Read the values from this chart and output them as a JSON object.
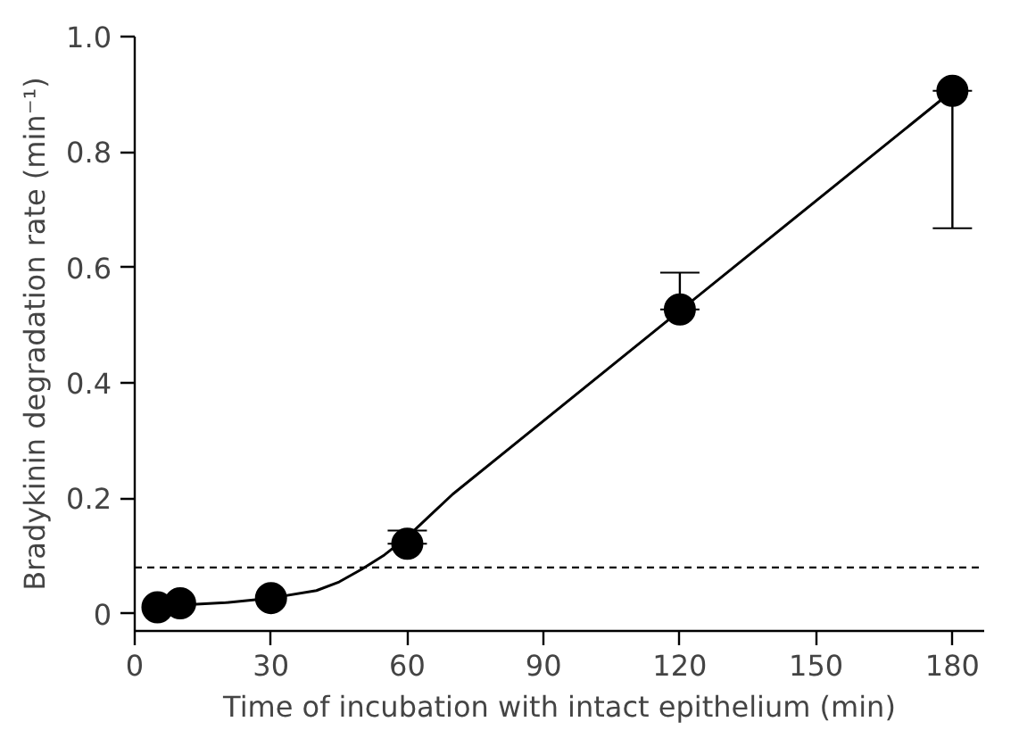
{
  "chart_data": {
    "type": "scatter",
    "xlabel": "Time of incubation with intact epithelium (min)",
    "ylabel": "Bradykinin degradation rate (min⁻¹)",
    "xlim": [
      0,
      187
    ],
    "ylim": [
      -0.03,
      1.0
    ],
    "xticks": [
      0,
      30,
      60,
      90,
      120,
      150,
      180
    ],
    "yticks": [
      0,
      {
        "value": 0.2,
        "label": "0.2"
      },
      {
        "value": 0.4,
        "label": "0.4"
      },
      {
        "value": 0.6,
        "label": "0.6"
      },
      {
        "value": 0.8,
        "label": "0.8"
      },
      {
        "value": 1.0,
        "label": "1.0"
      }
    ],
    "grid": false,
    "ref_lines": [
      {
        "axis": "y",
        "value": 0.08,
        "line_style": "dashed",
        "color": "#000000"
      }
    ],
    "series": [
      {
        "color": "#000000",
        "marker": "circle",
        "x": [
          5,
          10,
          30,
          60,
          120,
          180
        ],
        "values": [
          0.011,
          0.018,
          0.027,
          0.121,
          0.527,
          0.906
        ],
        "errors": [
          null,
          null,
          null,
          [
            0.121,
            0.144
          ],
          [
            0.527,
            0.591
          ],
          [
            0.668,
            0.906
          ]
        ]
      },
      {
        "type": "line",
        "color": "#000000",
        "marker": "none",
        "line_style": "solid",
        "x": [
          5,
          10,
          20,
          30,
          40,
          45,
          50,
          55,
          60,
          65,
          70,
          120,
          180
        ],
        "values": [
          0.012,
          0.015,
          0.019,
          0.027,
          0.04,
          0.055,
          0.077,
          0.102,
          0.133,
          0.17,
          0.207,
          0.525,
          0.906
        ]
      }
    ]
  }
}
